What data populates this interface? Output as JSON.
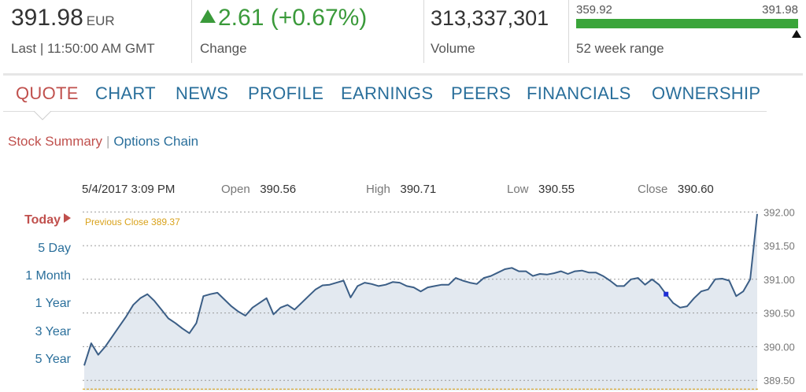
{
  "header": {
    "last_price": "391.98",
    "currency": "EUR",
    "last_time": "Last | 11:50:00 AM GMT",
    "change": "2.61 (+0.67%)",
    "change_label": "Change",
    "change_color": "#3a9a3a",
    "volume": "313,337,301",
    "volume_label": "Volume",
    "range_low": "359.92",
    "range_high": "391.98",
    "range_label": "52 week range",
    "range_color": "#3aa53a"
  },
  "tabs": [
    {
      "label": "QUOTE",
      "active": true
    },
    {
      "label": "CHART",
      "active": false
    },
    {
      "label": "NEWS",
      "active": false
    },
    {
      "label": "PROFILE",
      "active": false
    },
    {
      "label": "EARNINGS",
      "active": false
    },
    {
      "label": "PEERS",
      "active": false
    },
    {
      "label": "FINANCIALS",
      "active": false
    },
    {
      "label": "OWNERSHIP",
      "active": false
    }
  ],
  "subnav": {
    "active": "Stock Summary",
    "separator": "|",
    "link": "Options Chain"
  },
  "quote_line": {
    "datetime": "5/4/2017 3:09 PM",
    "open_label": "Open",
    "open": "390.56",
    "high_label": "High",
    "high": "390.71",
    "low_label": "Low",
    "low": "390.55",
    "close_label": "Close",
    "close": "390.60"
  },
  "ranges": [
    "Today",
    "5 Day",
    "1 Month",
    "1 Year",
    "3 Year",
    "5 Year"
  ],
  "active_range": "Today",
  "accent_color": "#c0504d",
  "link_color": "#2a6f9b",
  "chart_data": {
    "type": "area",
    "ylim": [
      389.35,
      392.05
    ],
    "yticks": [
      "392.00",
      "391.50",
      "391.00",
      "390.50",
      "390.00",
      "389.50"
    ],
    "ytick_values": [
      392.0,
      391.5,
      391.0,
      390.5,
      390.0,
      389.5
    ],
    "previous_close_label": "Previous Close 389.37",
    "previous_close": 389.37,
    "line_color": "#3b5e86",
    "fill_color": "#e3e9f0",
    "marker_color": "#1f2fd6",
    "marker_index": 83,
    "values": [
      389.72,
      390.05,
      389.88,
      390.0,
      390.15,
      390.3,
      390.45,
      390.62,
      390.72,
      390.78,
      390.68,
      390.55,
      390.42,
      390.35,
      390.27,
      390.2,
      390.35,
      390.75,
      390.78,
      390.8,
      390.7,
      390.6,
      390.52,
      390.46,
      390.58,
      390.65,
      390.72,
      390.48,
      390.58,
      390.62,
      390.55,
      390.65,
      390.75,
      390.85,
      390.91,
      390.92,
      390.95,
      390.98,
      390.73,
      390.9,
      390.95,
      390.93,
      390.9,
      390.92,
      390.96,
      390.95,
      390.9,
      390.88,
      390.82,
      390.88,
      390.9,
      390.92,
      390.92,
      391.02,
      390.98,
      390.95,
      390.93,
      391.02,
      391.05,
      391.1,
      391.15,
      391.17,
      391.12,
      391.12,
      391.05,
      391.08,
      391.07,
      391.09,
      391.12,
      391.08,
      391.12,
      391.13,
      391.1,
      391.1,
      391.05,
      390.98,
      390.9,
      390.9,
      391.0,
      391.02,
      390.92,
      391.0,
      390.92,
      390.78,
      390.65,
      390.58,
      390.6,
      390.72,
      390.82,
      390.85,
      391.0,
      391.01,
      390.98,
      390.75,
      390.82,
      391.0,
      391.97
    ]
  }
}
